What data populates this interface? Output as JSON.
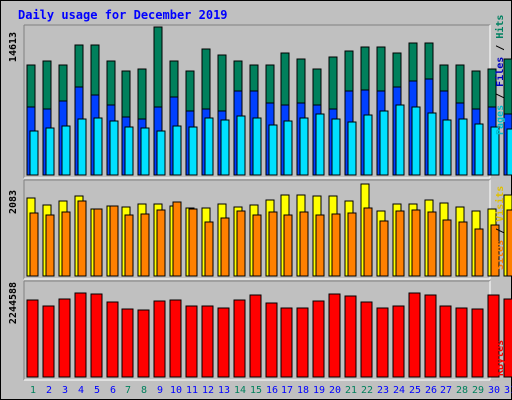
{
  "chart_data": {
    "type": "bar",
    "title": "Daily usage for December 2019",
    "categories": [
      "1",
      "2",
      "3",
      "4",
      "5",
      "6",
      "7",
      "8",
      "9",
      "10",
      "11",
      "12",
      "13",
      "14",
      "15",
      "16",
      "17",
      "18",
      "19",
      "20",
      "21",
      "22",
      "23",
      "24",
      "25",
      "26",
      "27",
      "28",
      "29",
      "30",
      "31"
    ],
    "weekend_days": [
      "1",
      "7",
      "8",
      "14",
      "15",
      "21",
      "22",
      "28",
      "29"
    ],
    "panels": [
      {
        "id": "top",
        "ymax_label": "14613",
        "ymax": 14613,
        "series": [
          {
            "name": "Hits",
            "color": "#00805c",
            "values": [
              11000,
              11400,
              11000,
              13000,
              13000,
              11400,
              10400,
              10600,
              14800,
              11400,
              10400,
              12600,
              12000,
              11400,
              11000,
              11000,
              12200,
              11600,
              10600,
              11800,
              12400,
              12800,
              12800,
              12200,
              13200,
              13200,
              11000,
              11000,
              10400,
              10600,
              11600
            ]
          },
          {
            "name": "Files",
            "color": "#0040ff",
            "values": [
              6800,
              6600,
              7400,
              8800,
              8000,
              7000,
              5800,
              5600,
              6800,
              7800,
              6400,
              6600,
              6400,
              8400,
              8400,
              7200,
              7000,
              7200,
              7000,
              6600,
              8400,
              8500,
              8400,
              8800,
              9400,
              9600,
              8400,
              7200,
              6600,
              6800,
              6100
            ]
          },
          {
            "name": "Pages",
            "color": "#00e0ff",
            "values": [
              4400,
              4700,
              4900,
              5600,
              5700,
              5400,
              4800,
              4700,
              4400,
              4900,
              4800,
              5700,
              5500,
              5900,
              5700,
              5000,
              5400,
              5700,
              6100,
              5600,
              5300,
              6000,
              6400,
              7000,
              6800,
              6200,
              5500,
              5600,
              5100,
              4800,
              4600
            ]
          },
          {
            "name": "Visits",
            "color": "#ffff00",
            "values": []
          }
        ]
      },
      {
        "id": "mid",
        "ymax_label": "2083",
        "ymax": 2083,
        "series": [
          {
            "name": "Sites",
            "color": "#ff8000",
            "values": [
              1420,
              1390,
              1450,
              1700,
              1520,
              1580,
              1370,
              1400,
              1500,
              1680,
              1520,
              1220,
              1320,
              1470,
              1380,
              1440,
              1380,
              1460,
              1380,
              1400,
              1430,
              1540,
              1240,
              1480,
              1500,
              1440,
              1270,
              1230,
              1060,
              1160,
              1500
            ]
          },
          {
            "name": "Visits",
            "color": "#ffff00",
            "values": [
              1770,
              1610,
              1690,
              1810,
              1520,
              1580,
              1570,
              1630,
              1630,
              1580,
              1540,
              1530,
              1630,
              1560,
              1600,
              1710,
              1840,
              1830,
              1820,
              1820,
              1690,
              2090,
              1470,
              1630,
              1640,
              1730,
              1650,
              1570,
              1480,
              1510,
              1840
            ]
          }
        ]
      },
      {
        "id": "bot",
        "ymax_label": "2244588",
        "ymax": 2244588,
        "series": [
          {
            "name": "KBytes",
            "color": "#ff0000",
            "values": [
              1870000,
              1720000,
              1880000,
              2030000,
              2010000,
              1800000,
              1640000,
              1620000,
              1830000,
              1870000,
              1710000,
              1710000,
              1660000,
              1860000,
              1990000,
              1790000,
              1660000,
              1660000,
              1830000,
              2000000,
              1950000,
              1820000,
              1660000,
              1720000,
              2020000,
              1980000,
              1710000,
              1660000,
              1640000,
              1970000,
              1880000
            ]
          }
        ]
      }
    ],
    "legend": {
      "top_right": [
        {
          "name": "Pages",
          "color": "#00c0d0"
        },
        {
          "name": "Files",
          "color": "#0000c0"
        },
        {
          "name": "Hits",
          "color": "#008060"
        }
      ],
      "mid_right": [
        {
          "name": "Sites",
          "color": "#ff8000"
        },
        {
          "name": "Visits",
          "color": "#e0c000"
        }
      ],
      "bot_right": [
        {
          "name": "KBytes",
          "color": "#ff0000"
        }
      ],
      "separator": " / "
    },
    "colors": {
      "background": "#c0c0c0",
      "title": "#0000ff",
      "weekday_label": "#0000ff",
      "weekend_label": "#00805c"
    }
  }
}
